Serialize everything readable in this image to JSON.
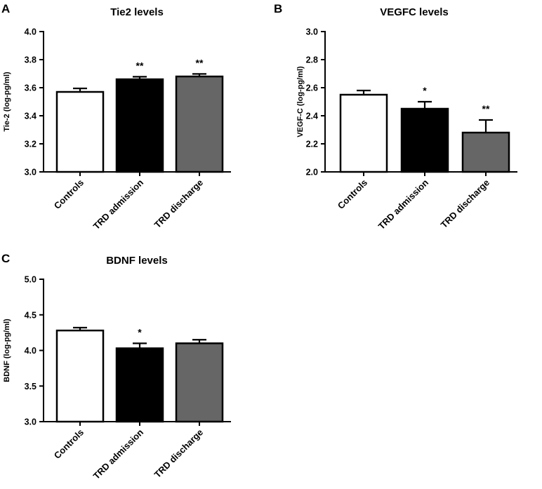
{
  "chart_data": [
    {
      "panel": "A",
      "type": "bar",
      "title": "Tie2 levels",
      "xlabel": "",
      "ylabel": "Tie-2 (log-pg/ml)",
      "categories": [
        "Controls",
        "TRD admission",
        "TRD discharge"
      ],
      "values": [
        3.57,
        3.66,
        3.68
      ],
      "errors": [
        0.025,
        0.018,
        0.018
      ],
      "significance": [
        "",
        "**",
        "**"
      ],
      "bar_colors": [
        "#ffffff",
        "#000000",
        "#666666"
      ],
      "ylim": [
        3.0,
        4.0
      ],
      "yticks": [
        "3.0",
        "3.2",
        "3.4",
        "3.6",
        "3.8",
        "4.0"
      ],
      "grid": false
    },
    {
      "panel": "B",
      "type": "bar",
      "title": "VEGFC levels",
      "xlabel": "",
      "ylabel": "VEGF-C (log-pg/ml)",
      "categories": [
        "Controls",
        "TRD admission",
        "TRD discharge"
      ],
      "values": [
        2.55,
        2.45,
        2.28
      ],
      "errors": [
        0.03,
        0.05,
        0.09
      ],
      "significance": [
        "",
        "*",
        "**"
      ],
      "bar_colors": [
        "#ffffff",
        "#000000",
        "#666666"
      ],
      "ylim": [
        2.0,
        3.0
      ],
      "yticks": [
        "2.0",
        "2.2",
        "2.4",
        "2.6",
        "2.8",
        "3.0"
      ],
      "grid": false
    },
    {
      "panel": "C",
      "type": "bar",
      "title": "BDNF levels",
      "xlabel": "",
      "ylabel": "BDNF (log-pg/ml)",
      "categories": [
        "Controls",
        "TRD admission",
        "TRD discharge"
      ],
      "values": [
        4.28,
        4.03,
        4.1
      ],
      "errors": [
        0.04,
        0.07,
        0.05
      ],
      "significance": [
        "",
        "*",
        ""
      ],
      "bar_colors": [
        "#ffffff",
        "#000000",
        "#666666"
      ],
      "ylim": [
        3.0,
        5.0
      ],
      "yticks": [
        "3.0",
        "3.5",
        "4.0",
        "4.5",
        "5.0"
      ],
      "grid": false
    }
  ]
}
